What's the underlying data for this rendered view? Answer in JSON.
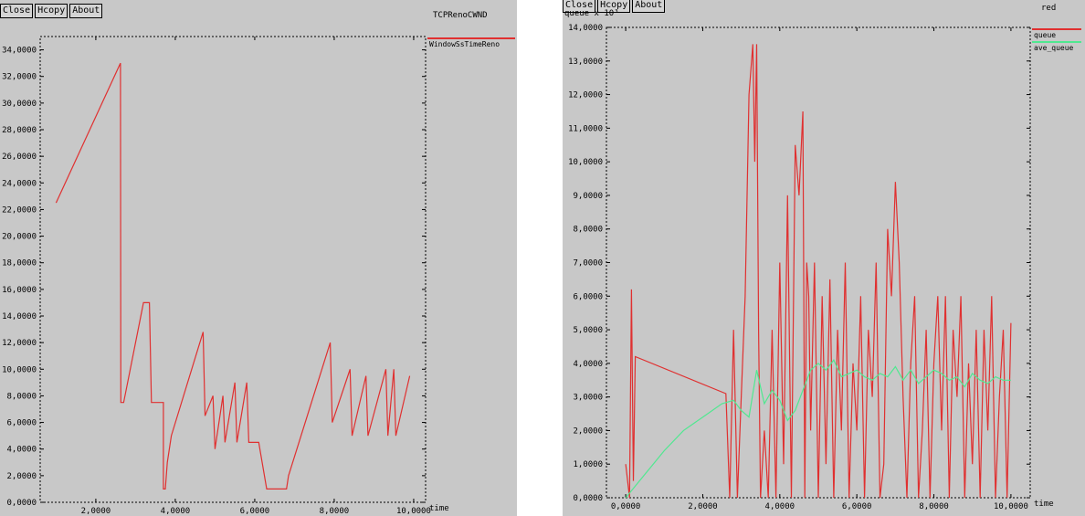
{
  "buttons": {
    "close": "Close",
    "hcopy": "Hcopy",
    "about": "About"
  },
  "left": {
    "window_title": "TCPRenoCWND",
    "legend": "WindowSsTimeReno",
    "y_ticks": [
      "0,0000",
      "2,0000",
      "4,0000",
      "6,0000",
      "8,0000",
      "10,0000",
      "12,0000",
      "14,0000",
      "16,0000",
      "18,0000",
      "20,0000",
      "22,0000",
      "24,0000",
      "26,0000",
      "28,0000",
      "30,0000",
      "32,0000",
      "34,0000"
    ],
    "x_ticks": [
      "2,0000",
      "4,0000",
      "6,0000",
      "8,0000",
      "10,0000"
    ],
    "xlabel": "time"
  },
  "right": {
    "window_title": "red",
    "ylabel": "queue x 10³",
    "legend": [
      "queue",
      "ave_queue"
    ],
    "y_ticks": [
      "0,0000",
      "1,0000",
      "2,0000",
      "3,0000",
      "4,0000",
      "5,0000",
      "6,0000",
      "7,0000",
      "8,0000",
      "9,0000",
      "10,0000",
      "11,0000",
      "12,0000",
      "13,0000",
      "14,0000"
    ],
    "x_ticks": [
      "0,0000",
      "2,0000",
      "4,0000",
      "6,0000",
      "8,0000",
      "10,0000"
    ],
    "xlabel": "time"
  },
  "colors": {
    "queue": "#e03030",
    "ave_queue": "#50e890",
    "cwnd": "#e03030"
  },
  "chart_data": [
    {
      "type": "line",
      "title": "TCPRenoCWND",
      "xlabel": "time",
      "ylabel": "",
      "xlim": [
        0.6,
        10.3
      ],
      "ylim": [
        0,
        35
      ],
      "series": [
        {
          "name": "WindowSsTimeReno",
          "x": [
            1.0,
            2.62,
            2.63,
            2.7,
            3.2,
            3.35,
            3.4,
            3.7,
            3.7,
            3.75,
            3.8,
            3.9,
            4.7,
            4.75,
            4.95,
            5.0,
            5.2,
            5.25,
            5.5,
            5.55,
            5.8,
            5.85,
            6.1,
            6.1,
            6.3,
            6.35,
            6.8,
            6.85,
            7.9,
            7.95,
            8.4,
            8.45,
            8.8,
            8.85,
            9.3,
            9.35,
            9.5,
            9.55,
            9.9
          ],
          "y": [
            22.5,
            33,
            7.5,
            7.5,
            15,
            15,
            7.5,
            7.5,
            1,
            1,
            3,
            5,
            12.8,
            6.5,
            8,
            4,
            8,
            4.5,
            9,
            4.5,
            9,
            4.5,
            4.5,
            4.5,
            1,
            1,
            1,
            2,
            12,
            6,
            10,
            5,
            9.5,
            5,
            10,
            5,
            10,
            5,
            9.5
          ]
        }
      ]
    },
    {
      "type": "line",
      "title": "",
      "xlabel": "time",
      "ylabel": "queue x 10³",
      "xlim": [
        -0.5,
        10.5
      ],
      "ylim": [
        0,
        14
      ],
      "series": [
        {
          "name": "queue",
          "x": [
            0,
            0.1,
            0.15,
            0.2,
            0.25,
            2.6,
            2.7,
            2.8,
            2.9,
            3.0,
            3.1,
            3.2,
            3.3,
            3.35,
            3.4,
            3.45,
            3.5,
            3.6,
            3.7,
            3.8,
            3.9,
            4.0,
            4.1,
            4.2,
            4.3,
            4.4,
            4.5,
            4.6,
            4.65,
            4.7,
            4.75,
            4.8,
            4.9,
            5.0,
            5.1,
            5.2,
            5.3,
            5.4,
            5.5,
            5.6,
            5.7,
            5.8,
            5.9,
            6.0,
            6.1,
            6.2,
            6.3,
            6.4,
            6.5,
            6.6,
            6.7,
            6.8,
            6.9,
            7.0,
            7.1,
            7.2,
            7.3,
            7.4,
            7.5,
            7.6,
            7.7,
            7.8,
            7.9,
            8.0,
            8.1,
            8.2,
            8.3,
            8.4,
            8.5,
            8.6,
            8.7,
            8.8,
            8.9,
            9.0,
            9.1,
            9.2,
            9.3,
            9.4,
            9.5,
            9.6,
            9.7,
            9.8,
            9.9,
            10.0
          ],
          "y": [
            1,
            0,
            6.2,
            0.5,
            4.2,
            3.1,
            0,
            5,
            0,
            3,
            6,
            12,
            13.5,
            10,
            13.5,
            5,
            0,
            2,
            0,
            5,
            0,
            7,
            1,
            9,
            0,
            10.5,
            9,
            11.5,
            0,
            7,
            6,
            2,
            7,
            0,
            6,
            1,
            6.5,
            0,
            5,
            2,
            7,
            0,
            4,
            2,
            6,
            0,
            5,
            3,
            7,
            0,
            1,
            8,
            6,
            9.4,
            7,
            3,
            0,
            4,
            6,
            0,
            2,
            5,
            0,
            4,
            6,
            2,
            6,
            0,
            5,
            3,
            6,
            0,
            4,
            1,
            5,
            0,
            5,
            2,
            6,
            0,
            3,
            5,
            0,
            5.2
          ]
        },
        {
          "name": "ave_queue",
          "x": [
            0,
            0.5,
            1.0,
            1.5,
            2.0,
            2.5,
            2.8,
            3.0,
            3.2,
            3.4,
            3.6,
            3.8,
            4.0,
            4.2,
            4.4,
            4.6,
            4.8,
            5.0,
            5.2,
            5.4,
            5.6,
            5.8,
            6.0,
            6.2,
            6.4,
            6.6,
            6.8,
            7.0,
            7.2,
            7.4,
            7.6,
            7.8,
            8.0,
            8.2,
            8.4,
            8.6,
            8.8,
            9.0,
            9.2,
            9.4,
            9.6,
            9.8,
            10.0
          ],
          "y": [
            0,
            0.7,
            1.4,
            2.0,
            2.4,
            2.8,
            2.9,
            2.6,
            2.4,
            3.8,
            2.8,
            3.2,
            2.9,
            2.3,
            2.6,
            3.2,
            3.8,
            4.0,
            3.8,
            4.1,
            3.6,
            3.7,
            3.8,
            3.6,
            3.5,
            3.7,
            3.6,
            3.9,
            3.5,
            3.8,
            3.4,
            3.6,
            3.8,
            3.7,
            3.5,
            3.6,
            3.3,
            3.7,
            3.5,
            3.4,
            3.6,
            3.5,
            3.5
          ]
        }
      ]
    }
  ]
}
